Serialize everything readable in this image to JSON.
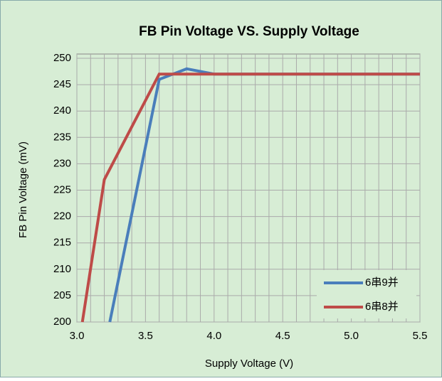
{
  "chart_data": {
    "type": "line",
    "title": "FB Pin Voltage VS. Supply Voltage",
    "xlabel": "Supply Voltage (V)",
    "ylabel": "FB Pin Voltage (mV)",
    "xlim": [
      3.0,
      5.5
    ],
    "xticks": [
      {
        "value": 3.0,
        "label": "3.0"
      },
      3.5,
      {
        "value": 4.0,
        "label": "4.0"
      },
      4.5,
      {
        "value": 5.0,
        "label": "5.0"
      },
      5.5
    ],
    "xgridlines": [
      3.1,
      3.2,
      3.3,
      3.4,
      3.6,
      3.7,
      3.8,
      3.9,
      4.1,
      4.2,
      4.3,
      4.4,
      4.6,
      4.7,
      4.8,
      4.9,
      5.1,
      5.2,
      5.3,
      5.4
    ],
    "ylim": [
      200,
      250
    ],
    "yticks": [
      200,
      205,
      210,
      215,
      220,
      225,
      230,
      235,
      240,
      245,
      250
    ],
    "grid": true,
    "legend": "lower right",
    "series": [
      {
        "name": "6串9并",
        "color": "#4a7ebb",
        "x": [
          3.24,
          3.6,
          3.8,
          4.0,
          5.5
        ],
        "values": [
          200,
          246,
          248,
          247,
          247
        ]
      },
      {
        "name": "6串8并",
        "color": "#be4b48",
        "x": [
          3.04,
          3.2,
          3.6,
          5.5
        ],
        "values": [
          200,
          227,
          247,
          247
        ]
      }
    ]
  }
}
